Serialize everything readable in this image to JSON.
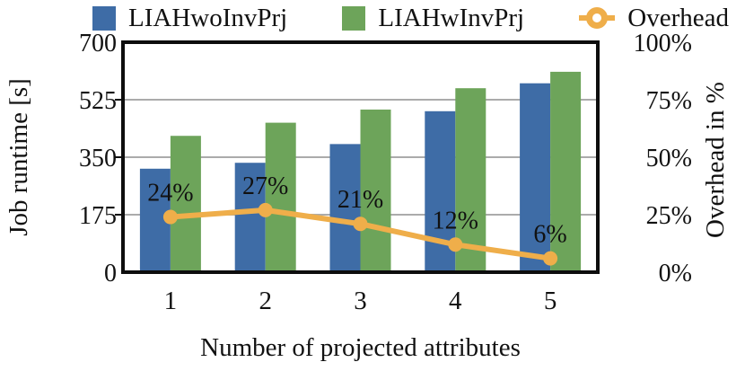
{
  "chart_data": {
    "type": "bar",
    "title": "",
    "categories": [
      "1",
      "2",
      "3",
      "4",
      "5"
    ],
    "series": [
      {
        "name": "LIAHwoInvPrj",
        "type": "bar",
        "axis": "left",
        "color": "#3E6CA6",
        "values": [
          315,
          333,
          390,
          490,
          575
        ]
      },
      {
        "name": "LIAHwInvPrj",
        "type": "bar",
        "axis": "left",
        "color": "#6DA45A",
        "values": [
          415,
          455,
          495,
          560,
          610
        ]
      },
      {
        "name": "Overhead",
        "type": "line",
        "axis": "right",
        "color": "#EFAE4A",
        "values": [
          24,
          27,
          21,
          12,
          6
        ],
        "point_labels": [
          "24%",
          "27%",
          "21%",
          "12%",
          "6%"
        ]
      }
    ],
    "xlabel": "Number of projected attributes",
    "left_axis": {
      "label": "Job runtime [s]",
      "ticks": [
        0,
        175,
        350,
        525,
        700
      ],
      "lim": [
        0,
        700
      ],
      "tick_suffix": ""
    },
    "right_axis": {
      "label": "Overhead in %",
      "ticks": [
        0,
        25,
        50,
        75,
        100
      ],
      "lim": [
        0,
        100
      ],
      "tick_suffix": "%"
    },
    "grid": true,
    "legend_position": "top",
    "colors": {
      "gridline": "#ABABAB",
      "plot_border": "#0D0D0D",
      "text": "#111111"
    }
  }
}
